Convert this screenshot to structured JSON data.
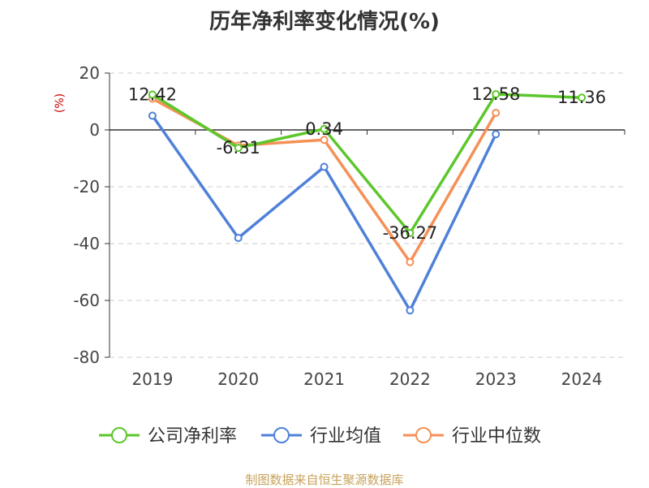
{
  "chart_data": {
    "type": "line",
    "title": "历年净利率变化情况(%)",
    "ylabel": "(%)",
    "xlabel": "",
    "categories": [
      "2019",
      "2020",
      "2021",
      "2022",
      "2023",
      "2024"
    ],
    "ylim": [
      -80,
      20
    ],
    "yticks": [
      20,
      0,
      -20,
      -40,
      -60,
      -80
    ],
    "grid": true,
    "legend_position": "bottom",
    "series": [
      {
        "name": "公司净利率",
        "color": "#5cc72a",
        "values": [
          12.42,
          -6.31,
          0.34,
          -36.27,
          12.58,
          11.36
        ],
        "labels": [
          "12.42",
          "-6.31",
          "0.34",
          "-36.27",
          "12.58",
          "11.36"
        ]
      },
      {
        "name": "行业均值",
        "color": "#4f81d8",
        "values": [
          5,
          -38,
          -13,
          -63.5,
          -1.5,
          null
        ]
      },
      {
        "name": "行业中位数",
        "color": "#f59056",
        "values": [
          11,
          -5.5,
          -3.5,
          -46.5,
          6,
          null
        ]
      }
    ]
  },
  "footer": "制图数据来自恒生聚源数据库"
}
